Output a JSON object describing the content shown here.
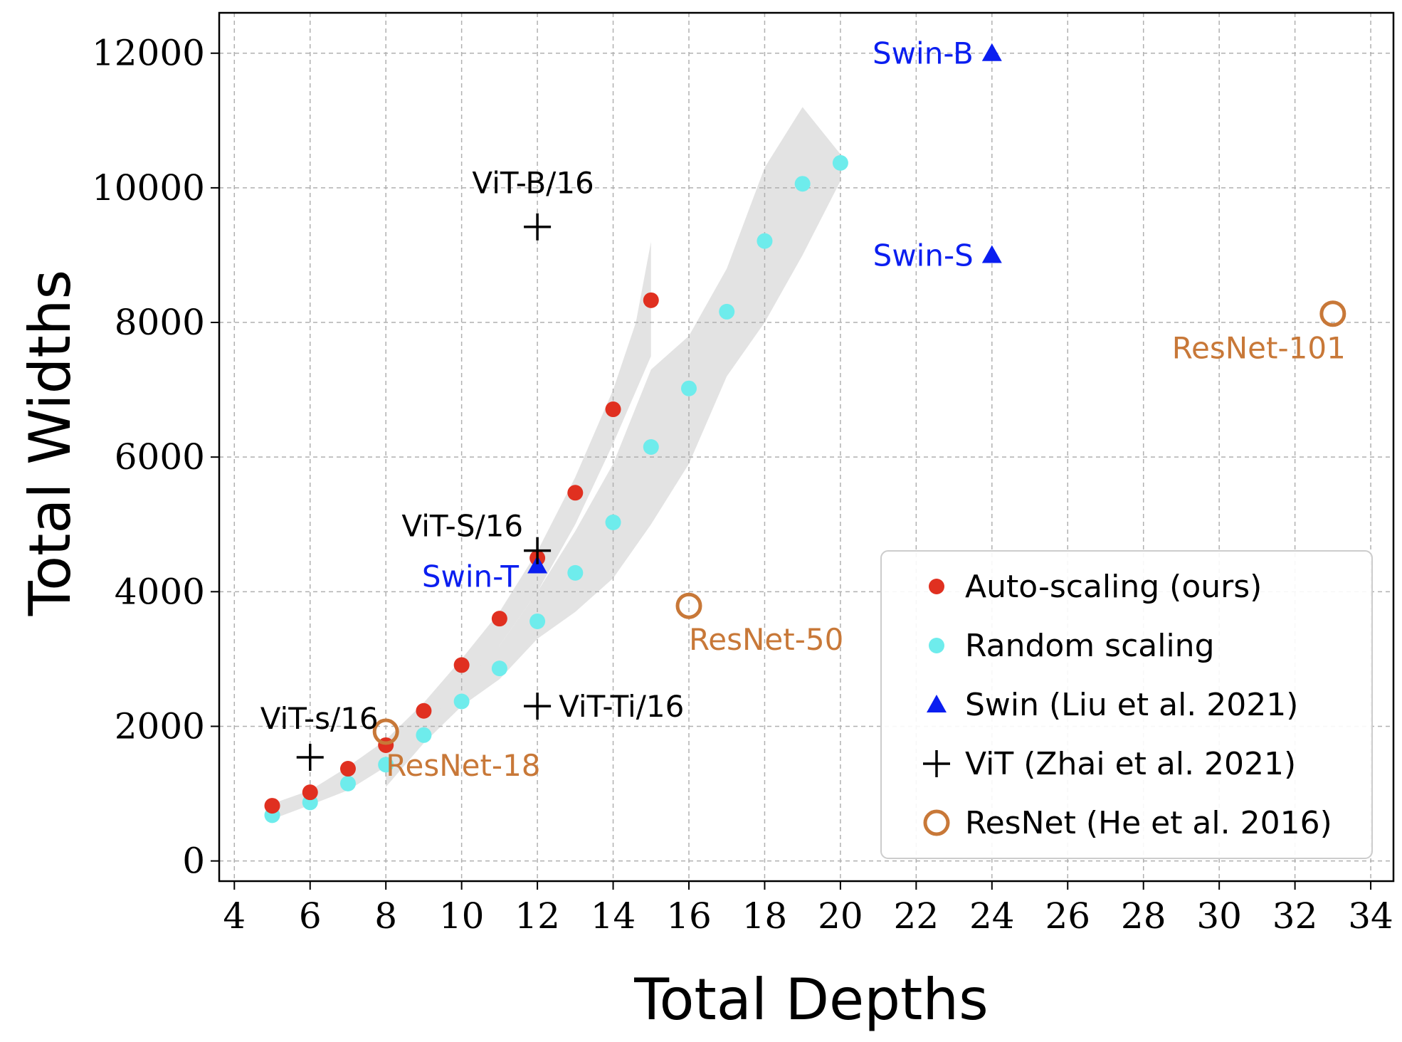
{
  "chart_data": {
    "type": "scatter",
    "xlabel": "Total Depths",
    "ylabel": "Total Widths",
    "xlim": [
      3.6,
      34.6
    ],
    "ylim": [
      -300,
      12600
    ],
    "xticks": [
      4,
      6,
      8,
      10,
      12,
      14,
      16,
      18,
      20,
      22,
      24,
      26,
      28,
      30,
      32,
      34
    ],
    "yticks": [
      0,
      2000,
      4000,
      6000,
      8000,
      10000,
      12000
    ],
    "grid": true,
    "legend_position": "bottom-right",
    "colors": {
      "auto": "#e03020",
      "random": "#6eecec",
      "swin": "#0a1ef0",
      "vit": "#000000",
      "resnet": "#c87838",
      "band": "#e3e3e3"
    },
    "bands": [
      {
        "upper": [
          [
            5,
            850
          ],
          [
            6,
            1050
          ],
          [
            7,
            1400
          ],
          [
            8,
            1800
          ],
          [
            9,
            2350
          ],
          [
            10,
            3000
          ],
          [
            11,
            3700
          ],
          [
            12,
            4600
          ],
          [
            13,
            5700
          ],
          [
            14,
            7000
          ],
          [
            14.6,
            8000
          ],
          [
            15,
            9200
          ]
        ],
        "lower": [
          [
            15,
            7500
          ],
          [
            14,
            6200
          ],
          [
            13,
            5000
          ],
          [
            12,
            4000
          ],
          [
            11,
            3200
          ],
          [
            10,
            2450
          ],
          [
            9,
            1850
          ],
          [
            8,
            1400
          ],
          [
            7,
            1050
          ],
          [
            6,
            830
          ],
          [
            5,
            620
          ]
        ]
      },
      {
        "upper": [
          [
            8,
            1600
          ],
          [
            9,
            2000
          ],
          [
            10,
            2600
          ],
          [
            11,
            3200
          ],
          [
            12,
            4000
          ],
          [
            13,
            4900
          ],
          [
            14,
            5900
          ],
          [
            15,
            7300
          ],
          [
            16,
            7800
          ],
          [
            17,
            8800
          ],
          [
            18,
            10300
          ],
          [
            19,
            11200
          ],
          [
            20,
            10500
          ]
        ],
        "lower": [
          [
            20,
            10100
          ],
          [
            19,
            9000
          ],
          [
            18,
            8000
          ],
          [
            17,
            7200
          ],
          [
            16,
            5900
          ],
          [
            15,
            5000
          ],
          [
            14,
            4200
          ],
          [
            13,
            3700
          ],
          [
            12,
            3300
          ],
          [
            11,
            2700
          ],
          [
            10,
            2300
          ],
          [
            9,
            1750
          ],
          [
            8,
            1100
          ]
        ]
      }
    ],
    "series": [
      {
        "name": "Auto-scaling (ours)",
        "marker": "circle",
        "points": [
          [
            5,
            820
          ],
          [
            6,
            1020
          ],
          [
            7,
            1370
          ],
          [
            8,
            1720
          ],
          [
            9,
            2230
          ],
          [
            10,
            2910
          ],
          [
            11,
            3600
          ],
          [
            12,
            4500
          ],
          [
            13,
            5470
          ],
          [
            14,
            6710
          ],
          [
            15,
            8330
          ]
        ]
      },
      {
        "name": "Random scaling",
        "marker": "circle",
        "points": [
          [
            5,
            680
          ],
          [
            6,
            870
          ],
          [
            7,
            1150
          ],
          [
            8,
            1430
          ],
          [
            9,
            1870
          ],
          [
            10,
            2370
          ],
          [
            11,
            2860
          ],
          [
            12,
            3560
          ],
          [
            13,
            4280
          ],
          [
            14,
            5030
          ],
          [
            15,
            6150
          ],
          [
            16,
            7020
          ],
          [
            17,
            8160
          ],
          [
            18,
            9210
          ],
          [
            19,
            10060
          ],
          [
            20,
            10370
          ]
        ]
      },
      {
        "name": "Swin (Liu et al. 2021)",
        "marker": "triangle",
        "points": [
          {
            "x": 12,
            "y": 4390,
            "label": "Swin-T"
          },
          {
            "x": 24,
            "y": 9000,
            "label": "Swin-S"
          },
          {
            "x": 24,
            "y": 12000,
            "label": "Swin-B"
          }
        ]
      },
      {
        "name": "ViT (Zhai et al. 2021)",
        "marker": "plus",
        "points": [
          {
            "x": 6,
            "y": 1540,
            "label": "ViT-s/16"
          },
          {
            "x": 12,
            "y": 2300,
            "label": "ViT-Ti/16"
          },
          {
            "x": 12,
            "y": 4610,
            "label": "ViT-S/16"
          },
          {
            "x": 12,
            "y": 9420,
            "label": "ViT-B/16"
          }
        ]
      },
      {
        "name": "ResNet (He et al. 2016)",
        "marker": "hollow-circle",
        "points": [
          {
            "x": 8,
            "y": 1920,
            "label": "ResNet-18"
          },
          {
            "x": 16,
            "y": 3790,
            "label": "ResNet-50"
          },
          {
            "x": 33,
            "y": 8130,
            "label": "ResNet-101"
          }
        ]
      }
    ]
  }
}
